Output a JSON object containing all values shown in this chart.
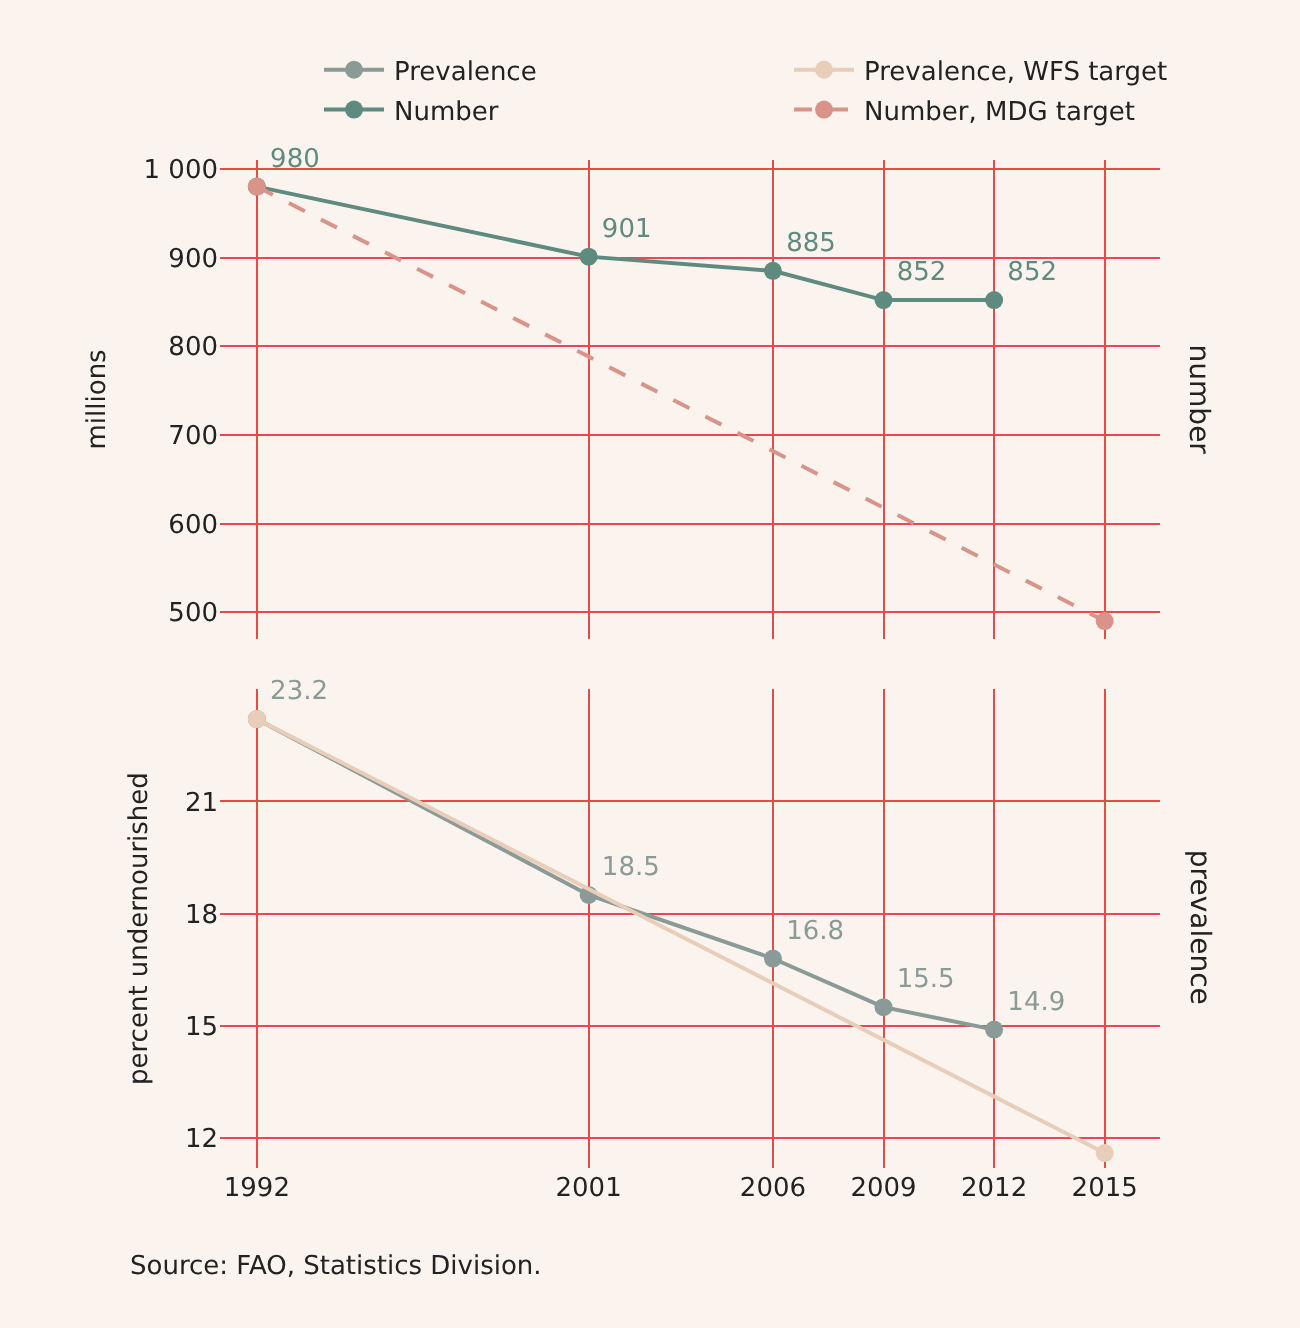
{
  "chart_data": [
    {
      "type": "line",
      "ylabel": "millions",
      "series": [
        {
          "name": "Number",
          "color": "#5e8a80",
          "x": [
            1992,
            2001,
            2006,
            2009,
            2012
          ],
          "values": [
            980,
            901,
            885,
            852,
            852
          ],
          "value_labels": [
            "980",
            "901",
            "885",
            "852",
            "852"
          ],
          "line_style": "solid"
        },
        {
          "name": "Number, MDG target",
          "color": "#d9948a",
          "x": [
            1992,
            2015
          ],
          "values": [
            980,
            490
          ],
          "line_style": "dashed"
        }
      ],
      "xlim": [
        1991,
        2016.5
      ],
      "xticks": [
        1992,
        2001,
        2006,
        2009,
        2012,
        2015
      ],
      "ylim": [
        470,
        1010
      ],
      "yticks": [
        {
          "value": 500,
          "label": "500"
        },
        {
          "value": 600,
          "label": "600"
        },
        {
          "value": 700,
          "label": "700"
        },
        {
          "value": 800,
          "label": "800"
        },
        {
          "value": 900,
          "label": "900"
        },
        {
          "value": 1000,
          "label": "1 000"
        }
      ],
      "grid": true,
      "legend": "top",
      "marker": "circle",
      "tick_labels": "y",
      "annotations": [
        "number"
      ]
    },
    {
      "type": "line",
      "ylabel": "percent undernourished",
      "series": [
        {
          "name": "Prevalence",
          "color": "#8a9a96",
          "x": [
            1992,
            2001,
            2006,
            2009,
            2012
          ],
          "values": [
            23.2,
            18.5,
            16.8,
            15.5,
            14.9
          ],
          "value_labels": [
            "23.2",
            "18.5",
            "16.8",
            "15.5",
            "14.9"
          ],
          "line_style": "solid"
        },
        {
          "name": "Prevalence, WFS target",
          "color": "#e8cdb8",
          "x": [
            1992,
            2015
          ],
          "values": [
            23.2,
            11.6
          ],
          "line_style": "solid"
        }
      ],
      "xlim": [
        1991,
        2016.5
      ],
      "xticks": [
        1992,
        2001,
        2006,
        2009,
        2012,
        2015
      ],
      "ylim": [
        11.2,
        24
      ],
      "yticks": [
        12,
        15,
        18,
        21
      ],
      "grid": true,
      "legend": "top",
      "marker": "circle",
      "annotations": [
        "prevalence",
        "Source: FAO, Statistics Division."
      ]
    }
  ]
}
